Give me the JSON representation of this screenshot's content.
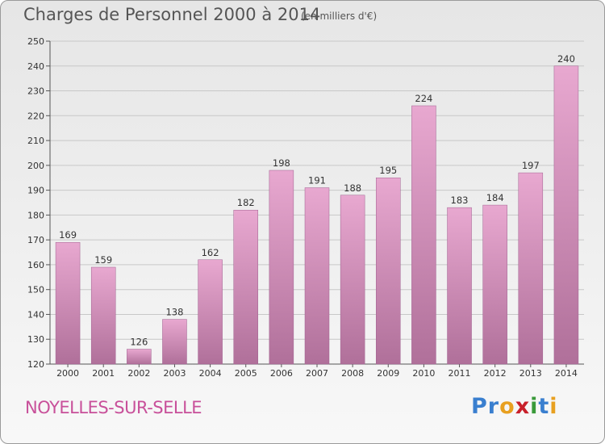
{
  "header": {
    "title": "Charges de Personnel 2000 à 2014",
    "unit": "(en milliers d'€)"
  },
  "footer": {
    "place": "NOYELLES-SUR-SELLE",
    "logo": [
      "P",
      "r",
      "o",
      "x",
      "i",
      "t",
      "i"
    ],
    "logo_colors": [
      "#3a7fcf",
      "#3a7fcf",
      "#e8a020",
      "#c8202a",
      "#3a9a3a",
      "#3a7fcf",
      "#e8a020"
    ]
  },
  "colors": {
    "bar_light": "#e8a8d0",
    "bar_dark": "#b0709a",
    "grid": "#c8c8c8",
    "axis": "#555555"
  },
  "chart_data": {
    "type": "bar",
    "title": "Charges de Personnel 2000 à 2014",
    "categories": [
      "2000",
      "2001",
      "2002",
      "2003",
      "2004",
      "2005",
      "2006",
      "2007",
      "2008",
      "2009",
      "2010",
      "2011",
      "2012",
      "2013",
      "2014"
    ],
    "values": [
      169,
      159,
      126,
      138,
      162,
      182,
      198,
      191,
      188,
      195,
      224,
      183,
      184,
      197,
      240
    ],
    "ylim": [
      120,
      250
    ],
    "yticks": [
      120,
      130,
      140,
      150,
      160,
      170,
      180,
      190,
      200,
      210,
      220,
      230,
      240,
      250
    ],
    "grid": true
  }
}
